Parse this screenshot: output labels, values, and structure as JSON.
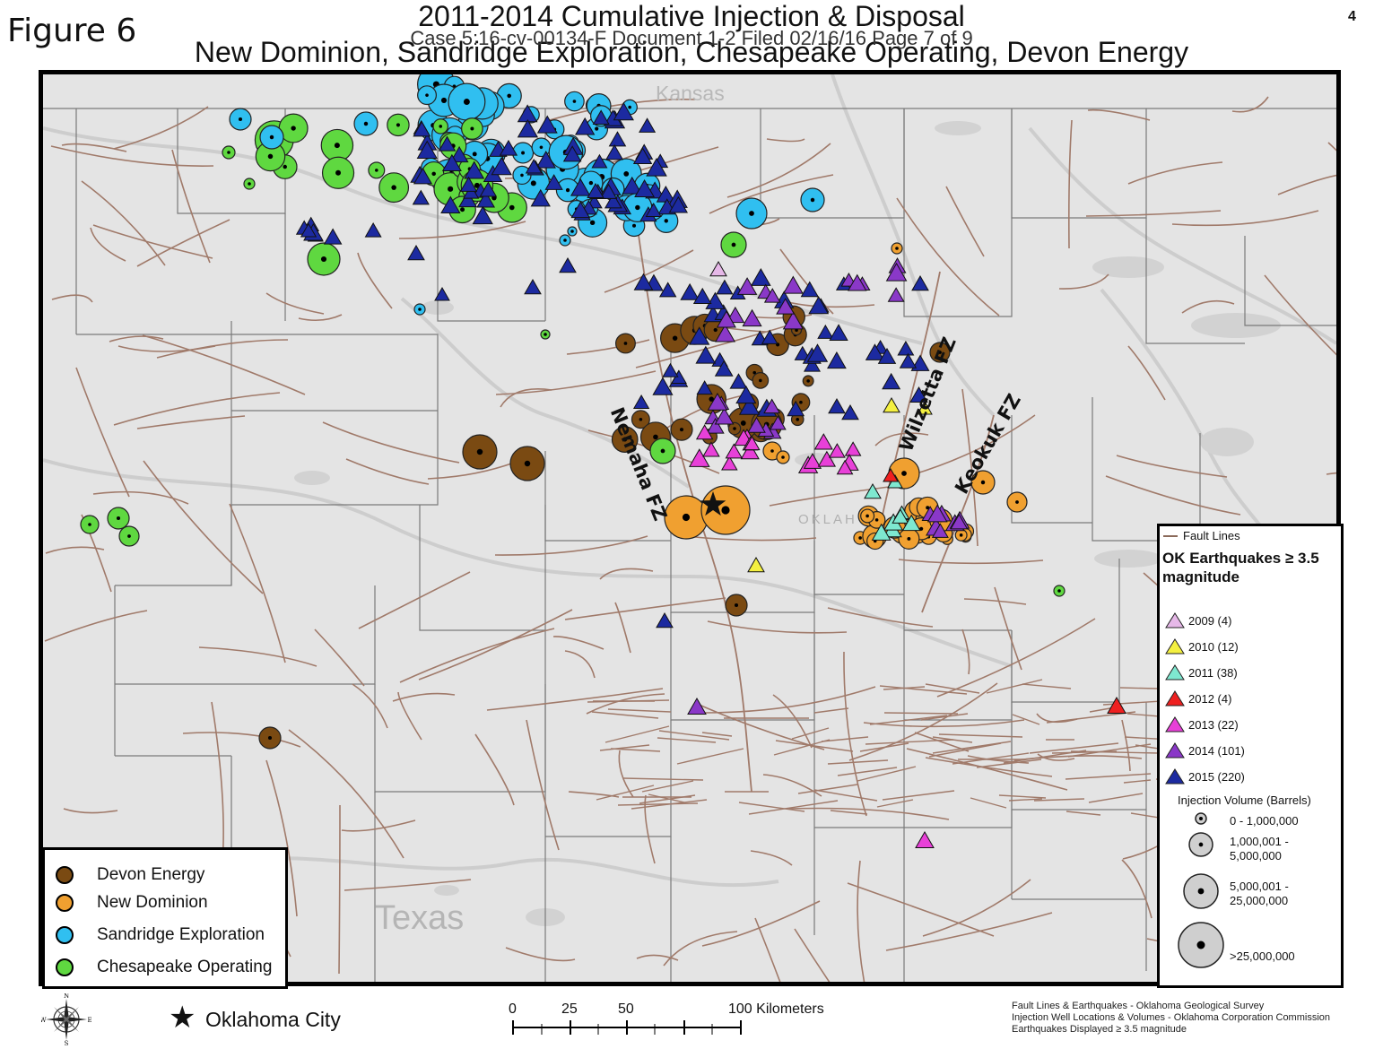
{
  "header": {
    "figure_label": "Figure 6",
    "page_number": "4",
    "title_line1": "2011-2014 Cumulative Injection & Disposal",
    "title_line2": "New Dominion, Sandridge Exploration, Chesapeake Operating, Devon Energy",
    "case_header": "Case 5:16-cv-00134-F   Document 1-2   Filed 02/16/16   Page 7 of 9"
  },
  "map": {
    "labels": {
      "kansas": "Kansas",
      "texas": "Texas",
      "oklahoma_partial": "OKLAH",
      "nemaha_fz": "Nemaha FZ",
      "wilzetta_fz": "Wilzetta FZ",
      "keokuk_fz": "Keokuk FZ"
    },
    "colors": {
      "land": "#e4e4e4",
      "county_lines": "#7a7a7a",
      "fault_lines": "#a07a6a",
      "rivers": "#d0d0d0"
    }
  },
  "operator_legend": {
    "items": [
      {
        "label": "Devon Energy",
        "color": "#7a4a12"
      },
      {
        "label": "New Dominion",
        "color": "#f0a030"
      },
      {
        "label": "Sandridge Exploration",
        "color": "#30bff0"
      },
      {
        "label": "Chesapeake Operating",
        "color": "#5fd840"
      }
    ]
  },
  "eq_legend": {
    "fault_label": "Fault Lines",
    "title": "OK Earthquakes ≥ 3.5 magnitude",
    "years": [
      {
        "label": "2009 (4)",
        "color": "#e6b8e8"
      },
      {
        "label": "2010 (12)",
        "color": "#f4f040"
      },
      {
        "label": "2011 (38)",
        "color": "#7ee8d0"
      },
      {
        "label": "2012 (4)",
        "color": "#ee2020"
      },
      {
        "label": "2013 (22)",
        "color": "#e840d8"
      },
      {
        "label": "2014 (101)",
        "color": "#8a38c8"
      },
      {
        "label": "2015 (220)",
        "color": "#1c2aa0"
      }
    ],
    "injection_title": "Injection Volume (Barrels)",
    "injection_classes": [
      {
        "label": "0 - 1,000,000"
      },
      {
        "label": "1,000,001 -\n5,000,000"
      },
      {
        "label": "5,000,001 -\n25,000,000"
      },
      {
        "label": ">25,000,000"
      }
    ]
  },
  "bottom": {
    "okc_label": "Oklahoma City",
    "compass_letters": {
      "n": "N",
      "s": "S",
      "e": "E",
      "w": "W"
    },
    "scale_labels": [
      "0",
      "25",
      "50",
      "100 Kilometers"
    ],
    "credits": [
      "Fault Lines & Earthquakes - Oklahoma Geological Survey",
      "Injection Well Locations & Volumes - Oklahoma Corporation Commission",
      "Earthquakes Displayed ≥ 3.5 magnitude"
    ]
  }
}
